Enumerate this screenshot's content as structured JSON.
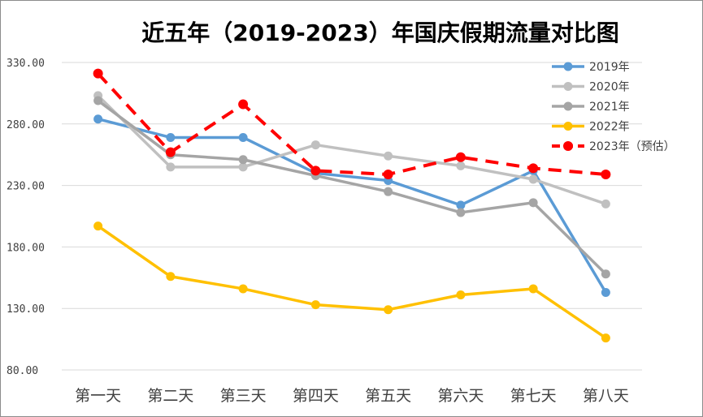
{
  "chart_data": {
    "type": "line",
    "title": "近五年（2019-2023）年国庆假期流量对比图",
    "xlabel": "",
    "ylabel": "",
    "categories": [
      "第一天",
      "第二天",
      "第三天",
      "第四天",
      "第五天",
      "第六天",
      "第七天",
      "第八天"
    ],
    "ylim": [
      80,
      330
    ],
    "yticks": [
      "80.00",
      "130.00",
      "180.00",
      "230.00",
      "280.00",
      "330.00"
    ],
    "grid": true,
    "legend_position": "top-right",
    "series": [
      {
        "name": "2019年",
        "color": "#5B9BD5",
        "dashed": false,
        "values": [
          284,
          269,
          269,
          240,
          234,
          214,
          242,
          143
        ]
      },
      {
        "name": "2020年",
        "color": "#C0C0C0",
        "dashed": false,
        "values": [
          303,
          245,
          245,
          263,
          254,
          246,
          235,
          215
        ]
      },
      {
        "name": "2021年",
        "color": "#A5A5A5",
        "dashed": false,
        "values": [
          299,
          255,
          251,
          238,
          225,
          208,
          216,
          158
        ]
      },
      {
        "name": "2022年",
        "color": "#FFC000",
        "dashed": false,
        "values": [
          197,
          156,
          146,
          133,
          129,
          141,
          146,
          106
        ]
      },
      {
        "name": "2023年（预估）",
        "color": "#FF0000",
        "dashed": true,
        "values": [
          321,
          257,
          296,
          242,
          239,
          253,
          244,
          239
        ]
      }
    ]
  }
}
